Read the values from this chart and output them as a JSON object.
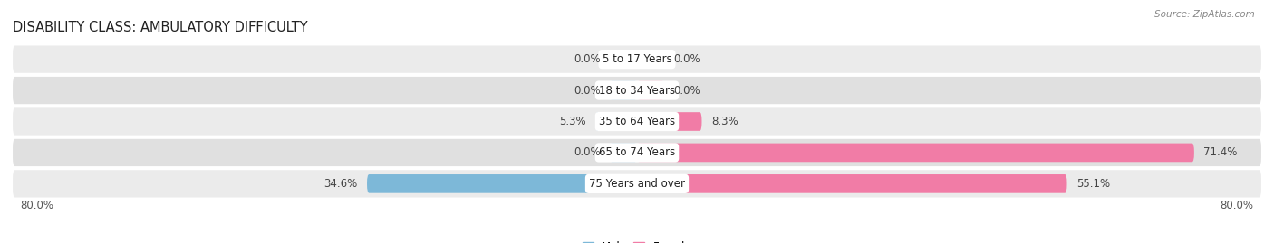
{
  "title": "DISABILITY CLASS: AMBULATORY DIFFICULTY",
  "source": "Source: ZipAtlas.com",
  "categories": [
    "5 to 17 Years",
    "18 to 34 Years",
    "35 to 64 Years",
    "65 to 74 Years",
    "75 Years and over"
  ],
  "male_values": [
    0.0,
    0.0,
    5.3,
    0.0,
    34.6
  ],
  "female_values": [
    0.0,
    0.0,
    8.3,
    71.4,
    55.1
  ],
  "male_color": "#7db8d8",
  "female_color": "#f17ca6",
  "row_bg_color_odd": "#ebebeb",
  "row_bg_color_even": "#e0e0e0",
  "x_min": -80.0,
  "x_max": 80.0,
  "axis_label_left": "80.0%",
  "axis_label_right": "80.0%",
  "label_fontsize": 8.5,
  "title_fontsize": 10.5,
  "category_fontsize": 8.5,
  "value_fontsize": 8.5,
  "min_stub": 3.5
}
